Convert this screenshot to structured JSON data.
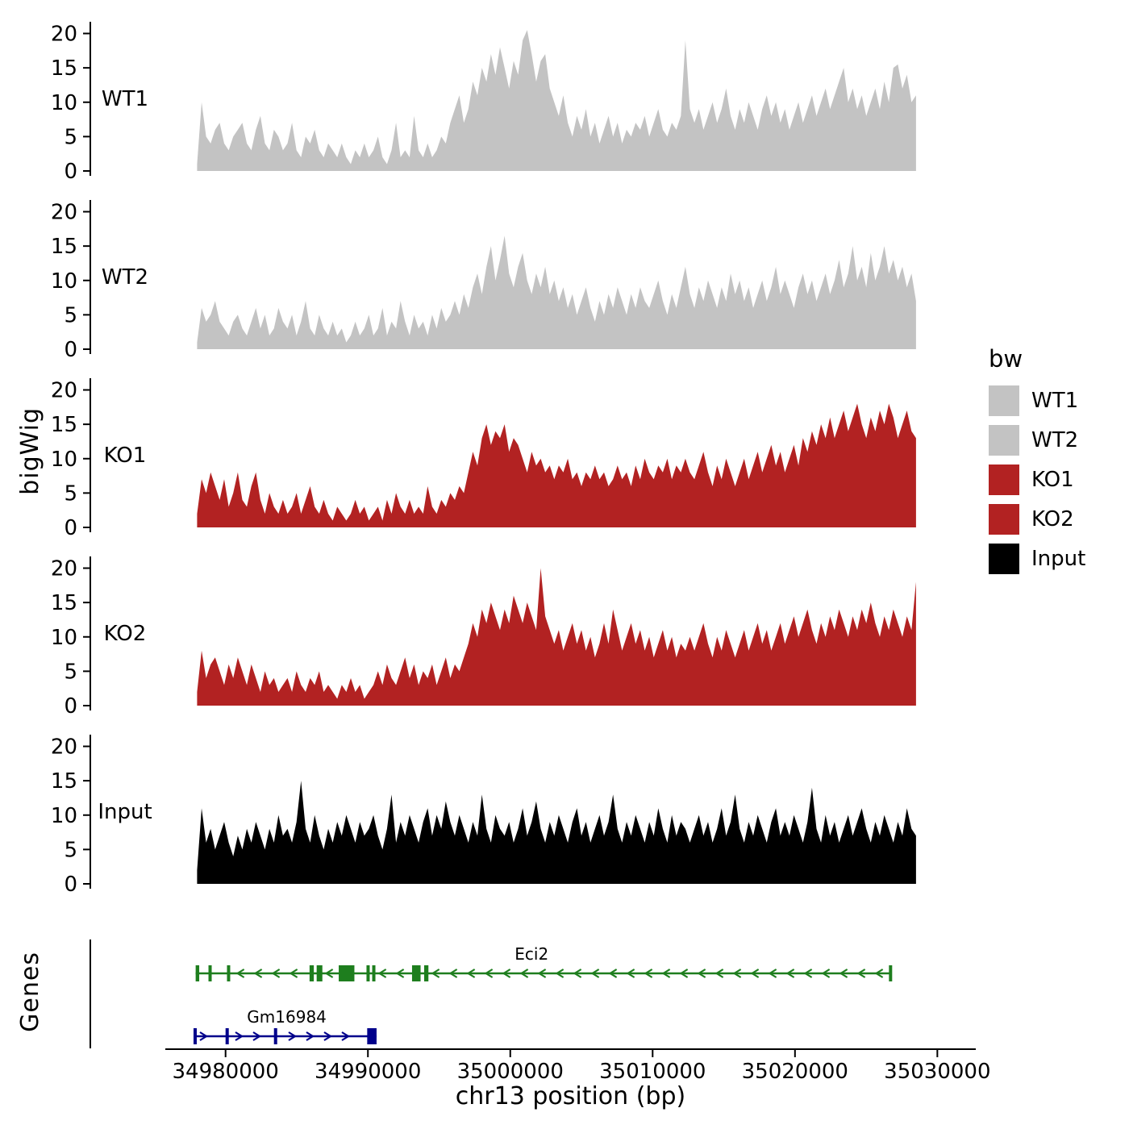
{
  "ylabel": "bigWig",
  "xlabel": "chr13 position (bp)",
  "genes_label": "Genes",
  "legend": {
    "title": "bw",
    "entries": [
      {
        "label": "WT1",
        "color": "#c3c3c3"
      },
      {
        "label": "WT2",
        "color": "#c3c3c3"
      },
      {
        "label": "KO1",
        "color": "#b22222"
      },
      {
        "label": "KO2",
        "color": "#b22222"
      },
      {
        "label": "Input",
        "color": "#000000"
      }
    ]
  },
  "chart_data": {
    "type": "area",
    "title": "",
    "xlabel": "chr13 position (bp)",
    "ylabel": "bigWig",
    "x_domain": [
      34970500,
      35032700
    ],
    "x_ticks": [
      34980000,
      34990000,
      35000000,
      35010000,
      35020000,
      35030000
    ],
    "y_ticks": [
      0,
      5,
      10,
      15,
      20
    ],
    "ylim": [
      0,
      21
    ],
    "series_x_start": 34978000,
    "series_x_end": 35028500,
    "tracks": [
      {
        "name": "WT1",
        "color": "#c3c3c3",
        "values": [
          1,
          10,
          5,
          4,
          6,
          7,
          4,
          3,
          5,
          6,
          7,
          4,
          3,
          6,
          8,
          4,
          3,
          6,
          5,
          3,
          4,
          7,
          3,
          2,
          5,
          4,
          6,
          3,
          2,
          4,
          3,
          2,
          4,
          2,
          1,
          3,
          2,
          4,
          2,
          3,
          5,
          2,
          1,
          3,
          7,
          2,
          3,
          2,
          8,
          3,
          2,
          4,
          2,
          3,
          5,
          4,
          7,
          9,
          11,
          7,
          9,
          13,
          11,
          15,
          13,
          17,
          14,
          18,
          15,
          12,
          16,
          14,
          19,
          20.5,
          17,
          13,
          16,
          17,
          12,
          10,
          8,
          11,
          7,
          5,
          8,
          6,
          9,
          5,
          7,
          4,
          6,
          8,
          5,
          7,
          4,
          6,
          5,
          7,
          6,
          8,
          5,
          7,
          9,
          6,
          5,
          7,
          6,
          8,
          19,
          9,
          7,
          9,
          6,
          8,
          10,
          7,
          9,
          12,
          8,
          6,
          9,
          7,
          10,
          8,
          6,
          9,
          11,
          8,
          10,
          7,
          9,
          6,
          8,
          10,
          7,
          9,
          11,
          8,
          10,
          12,
          9,
          11,
          13,
          15,
          10,
          12,
          9,
          11,
          8,
          10,
          12,
          9,
          13,
          10,
          15,
          15.5,
          12,
          14,
          10,
          11
        ]
      },
      {
        "name": "WT2",
        "color": "#c3c3c3",
        "values": [
          1,
          6,
          4,
          5,
          7,
          4,
          3,
          2,
          4,
          5,
          3,
          2,
          4,
          6,
          3,
          5,
          2,
          3,
          6,
          4,
          3,
          5,
          2,
          4,
          7,
          3,
          2,
          5,
          3,
          2,
          4,
          2,
          3,
          1,
          2,
          4,
          2,
          3,
          5,
          2,
          3,
          6,
          2,
          4,
          3,
          7,
          4,
          2,
          5,
          3,
          4,
          2,
          5,
          3,
          6,
          4,
          5,
          7,
          5,
          8,
          6,
          9,
          11,
          8,
          12,
          15,
          10,
          13,
          16.5,
          11,
          9,
          12,
          14,
          10,
          8,
          11,
          9,
          12,
          8,
          10,
          7,
          9,
          6,
          8,
          5,
          7,
          9,
          6,
          4,
          7,
          5,
          8,
          6,
          9,
          7,
          5,
          8,
          6,
          9,
          7,
          6,
          8,
          10,
          7,
          5,
          8,
          6,
          9,
          12,
          8,
          6,
          9,
          7,
          10,
          8,
          6,
          9,
          7,
          11,
          8,
          10,
          7,
          9,
          6,
          8,
          10,
          7,
          9,
          12,
          8,
          10,
          8,
          6,
          9,
          11,
          8,
          10,
          7,
          9,
          11,
          8,
          10,
          13,
          9,
          11,
          15,
          10,
          12,
          9,
          14,
          10,
          12,
          15,
          11,
          13,
          10,
          12,
          9,
          11,
          7
        ]
      },
      {
        "name": "KO1",
        "color": "#b22222",
        "values": [
          2,
          7,
          5,
          8,
          6,
          4,
          7,
          3,
          5,
          8,
          4,
          3,
          6,
          8,
          4,
          2,
          5,
          3,
          2,
          4,
          2,
          3,
          5,
          2,
          4,
          6,
          3,
          2,
          4,
          2,
          1,
          3,
          2,
          1,
          2,
          4,
          2,
          3,
          1,
          2,
          3,
          1,
          4,
          2,
          5,
          3,
          2,
          4,
          2,
          3,
          2,
          6,
          3,
          2,
          4,
          3,
          5,
          4,
          6,
          5,
          8,
          11,
          9,
          13,
          15,
          12,
          14,
          13,
          15,
          11,
          13,
          12,
          10,
          8,
          11,
          9,
          10,
          8,
          9,
          7,
          9,
          8,
          10,
          7,
          8,
          6,
          8,
          7,
          9,
          7,
          8,
          6,
          7,
          9,
          7,
          8,
          6,
          9,
          7,
          10,
          8,
          7,
          9,
          8,
          10,
          7,
          9,
          8,
          10,
          8,
          7,
          9,
          11,
          8,
          6,
          9,
          7,
          10,
          8,
          6,
          8,
          10,
          7,
          9,
          11,
          8,
          10,
          12,
          9,
          11,
          8,
          10,
          12,
          9,
          13,
          11,
          14,
          12,
          15,
          13,
          16,
          13,
          15,
          17,
          14,
          16,
          18,
          15,
          13,
          16,
          14,
          17,
          15,
          18,
          16,
          13,
          15,
          17,
          14,
          13
        ]
      },
      {
        "name": "KO2",
        "color": "#b22222",
        "values": [
          2,
          8,
          4,
          6,
          7,
          5,
          3,
          6,
          4,
          7,
          5,
          3,
          6,
          4,
          2,
          5,
          3,
          4,
          2,
          3,
          4,
          2,
          5,
          3,
          2,
          4,
          3,
          5,
          2,
          3,
          2,
          1,
          3,
          2,
          4,
          2,
          3,
          1,
          2,
          3,
          5,
          3,
          6,
          4,
          3,
          5,
          7,
          4,
          6,
          3,
          5,
          4,
          6,
          3,
          5,
          7,
          4,
          6,
          5,
          7,
          9,
          12,
          10,
          14,
          12,
          15,
          13,
          11,
          14,
          12,
          16,
          14,
          12,
          15,
          13,
          11,
          20,
          13,
          11,
          9,
          11,
          8,
          10,
          12,
          9,
          11,
          8,
          10,
          7,
          9,
          12,
          9,
          14,
          11,
          8,
          10,
          12,
          9,
          11,
          8,
          10,
          7,
          9,
          11,
          8,
          10,
          7,
          9,
          8,
          10,
          8,
          10,
          12,
          9,
          7,
          10,
          8,
          11,
          9,
          7,
          9,
          11,
          8,
          10,
          12,
          9,
          11,
          8,
          10,
          12,
          9,
          11,
          13,
          10,
          12,
          14,
          11,
          9,
          12,
          10,
          13,
          11,
          14,
          12,
          10,
          13,
          11,
          14,
          12,
          15,
          12,
          10,
          13,
          11,
          14,
          12,
          10,
          13,
          11,
          18
        ]
      },
      {
        "name": "Input",
        "color": "#000000",
        "values": [
          2,
          11,
          6,
          8,
          5,
          7,
          9,
          6,
          4,
          7,
          5,
          8,
          6,
          9,
          7,
          5,
          8,
          6,
          10,
          7,
          8,
          6,
          9,
          15,
          8,
          6,
          10,
          7,
          5,
          8,
          6,
          9,
          7,
          10,
          8,
          6,
          9,
          7,
          8,
          10,
          7,
          5,
          8,
          13,
          6,
          9,
          7,
          10,
          8,
          6,
          9,
          11,
          7,
          10,
          8,
          12,
          9,
          7,
          10,
          8,
          6,
          9,
          7,
          13,
          8,
          6,
          10,
          8,
          7,
          9,
          6,
          8,
          11,
          7,
          9,
          12,
          8,
          6,
          9,
          7,
          10,
          8,
          6,
          9,
          11,
          7,
          9,
          6,
          8,
          10,
          7,
          9,
          13,
          8,
          6,
          9,
          7,
          10,
          8,
          6,
          9,
          7,
          11,
          8,
          6,
          10,
          7,
          9,
          8,
          6,
          8,
          10,
          7,
          9,
          6,
          8,
          11,
          7,
          9,
          13,
          8,
          6,
          9,
          7,
          10,
          8,
          6,
          9,
          11,
          7,
          9,
          7,
          10,
          8,
          6,
          9,
          14,
          8,
          6,
          10,
          7,
          9,
          6,
          8,
          10,
          7,
          9,
          11,
          8,
          6,
          9,
          7,
          10,
          8,
          6,
          9,
          7,
          11,
          8,
          7
        ]
      }
    ],
    "genes": [
      {
        "name": "Eci2",
        "color": "#1e7e1e",
        "strand": "-",
        "row": 0,
        "start": 34977900,
        "end": 35026800,
        "label_bp": 35001500,
        "exons": [
          [
            34977900,
            34978150
          ],
          [
            34978800,
            34979000
          ],
          [
            34980100,
            34980250
          ],
          [
            34985900,
            34986200
          ],
          [
            34986400,
            34986800
          ],
          [
            34987950,
            34989050
          ],
          [
            34989900,
            34990050
          ],
          [
            34990300,
            34990450
          ],
          [
            34993100,
            34993700
          ],
          [
            34993950,
            34994250
          ],
          [
            35026600,
            35026800
          ]
        ]
      },
      {
        "name": "Gm16984",
        "color": "#00008b",
        "strand": "+",
        "row": 1,
        "start": 34977750,
        "end": 34990608,
        "label_bp": 34984300,
        "exons": [
          [
            34977750,
            34977900
          ],
          [
            34980000,
            34980150
          ],
          [
            34983400,
            34983550
          ],
          [
            34989950,
            34990608
          ]
        ]
      }
    ]
  }
}
